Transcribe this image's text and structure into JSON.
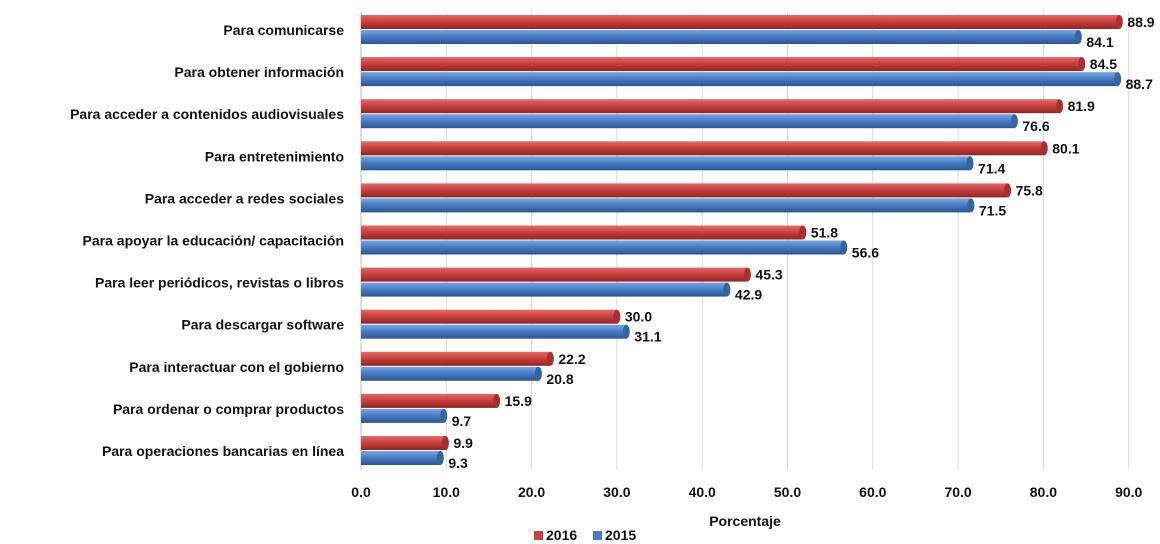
{
  "chart_data": {
    "type": "bar",
    "orientation": "horizontal",
    "title": "",
    "xlabel": "Porcentaje",
    "ylabel": "",
    "xlim": [
      0,
      90
    ],
    "x_ticks": [
      "0.0",
      "10.0",
      "20.0",
      "30.0",
      "40.0",
      "50.0",
      "60.0",
      "70.0",
      "80.0",
      "90.0"
    ],
    "grid": "vertical",
    "legend_position": "bottom",
    "categories": [
      "Para comunicarse",
      "Para obtener información",
      "Para acceder a contenidos audiovisuales",
      "Para entretenimiento",
      "Para acceder a redes sociales",
      "Para apoyar la educación/ capacitación",
      "Para leer periódicos, revistas o libros",
      "Para descargar software",
      "Para interactuar con el gobierno",
      "Para ordenar o comprar productos",
      "Para operaciones bancarias en línea"
    ],
    "series": [
      {
        "name": "2016",
        "color": "#c9413f",
        "values": [
          88.9,
          84.5,
          81.9,
          80.1,
          75.8,
          51.8,
          45.3,
          30.0,
          22.2,
          15.9,
          9.9
        ]
      },
      {
        "name": "2015",
        "color": "#4a7ec4",
        "values": [
          84.1,
          88.7,
          76.6,
          71.4,
          71.5,
          56.6,
          42.9,
          31.1,
          20.8,
          9.7,
          9.3
        ]
      }
    ]
  }
}
